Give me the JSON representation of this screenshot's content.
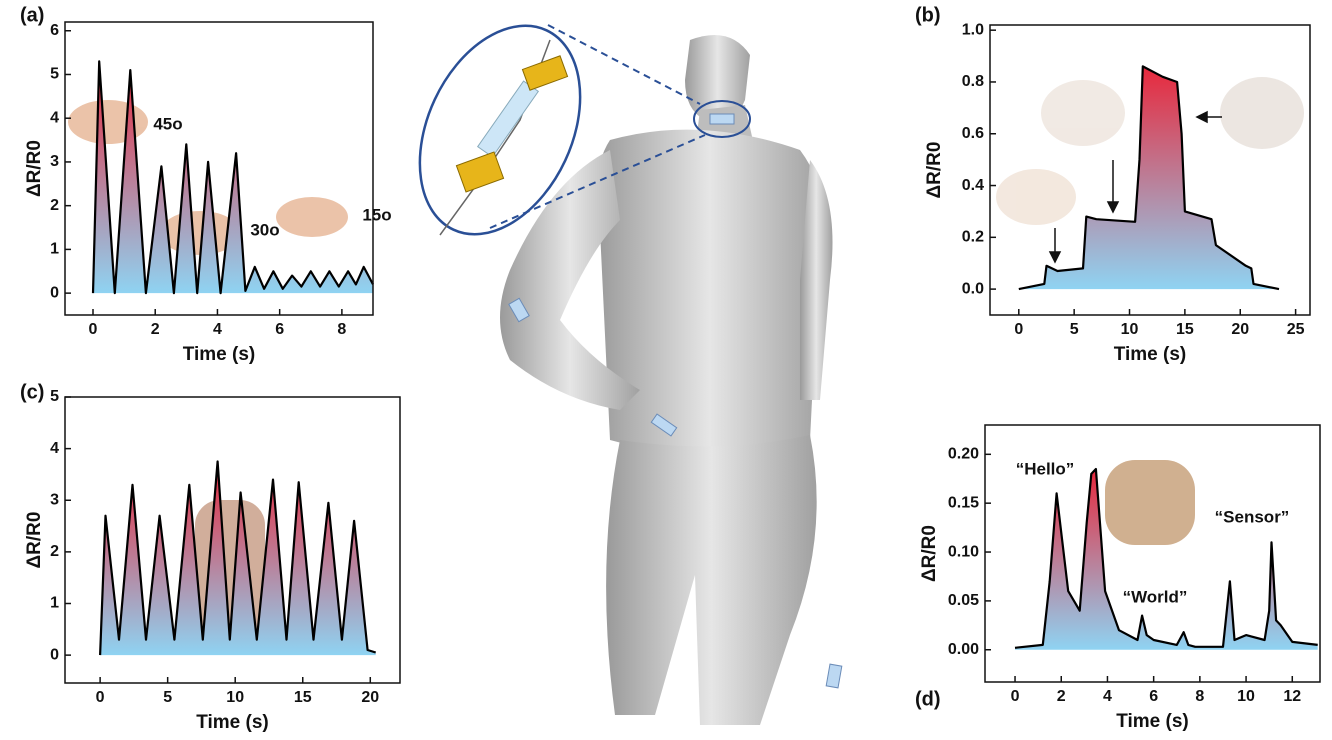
{
  "chart_data": [
    {
      "type": "area",
      "label": "(a)",
      "x_label": "Time (s)",
      "y_label": "ΔR/R0",
      "color": "#000000",
      "area_gradient": [
        "#e8283c",
        "#8fd3f2"
      ],
      "x": [
        0,
        0.2,
        0.7,
        1.2,
        1.7,
        2.2,
        2.6,
        3.0,
        3.35,
        3.7,
        4.1,
        4.6,
        4.9,
        5.2,
        5.5,
        5.8,
        6.1,
        6.4,
        6.7,
        7.0,
        7.3,
        7.6,
        7.9,
        8.2,
        8.45,
        8.7,
        9.0
      ],
      "values": [
        0,
        5.3,
        0,
        5.1,
        0,
        2.9,
        0,
        3.4,
        0,
        3.0,
        0,
        3.2,
        0.05,
        0.6,
        0.1,
        0.5,
        0.1,
        0.4,
        0.15,
        0.5,
        0.15,
        0.5,
        0.15,
        0.5,
        0.2,
        0.6,
        0.2
      ],
      "xlim": [
        -0.9,
        9.0
      ],
      "ylim": [
        -0.5,
        6.2
      ],
      "xticks": [
        0,
        2,
        4,
        6,
        8
      ],
      "yticks": [
        0,
        1,
        2,
        3,
        4,
        5,
        6
      ],
      "annotations": [
        "45o",
        "30o",
        "15o"
      ]
    },
    {
      "type": "area",
      "label": "(b)",
      "x_label": "Time (s)",
      "y_label": "ΔR/R0",
      "color": "#000000",
      "area_gradient": [
        "#e8283c",
        "#8fd3f2"
      ],
      "x": [
        0,
        2.3,
        2.5,
        3.5,
        5.8,
        6.1,
        7,
        10.5,
        10.9,
        11.2,
        13,
        14.3,
        14.7,
        15,
        17.4,
        17.8,
        20.5,
        21,
        21.2,
        23.5
      ],
      "values": [
        0,
        0.02,
        0.09,
        0.07,
        0.08,
        0.28,
        0.27,
        0.26,
        0.5,
        0.86,
        0.82,
        0.8,
        0.6,
        0.3,
        0.27,
        0.17,
        0.09,
        0.08,
        0.02,
        0
      ],
      "xlim": [
        -2.6,
        26.3
      ],
      "ylim": [
        -0.1,
        1.02
      ],
      "xticks": [
        0,
        5,
        10,
        15,
        20,
        25
      ],
      "yticks": [
        {
          "value": 0,
          "label": "0.0"
        },
        0.2,
        0.4,
        0.6,
        0.8,
        {
          "value": 1,
          "label": "1.0"
        }
      ]
    },
    {
      "type": "area",
      "label": "(c)",
      "x_label": "Time (s)",
      "y_label": "ΔR/R0",
      "color": "#000000",
      "area_gradient": [
        "#e8283c",
        "#8fd3f2"
      ],
      "x": [
        0,
        0.4,
        1.4,
        2.4,
        3.4,
        4.4,
        5.5,
        6.6,
        7.6,
        8.7,
        9.6,
        10.4,
        11.6,
        12.8,
        13.8,
        14.7,
        15.8,
        16.9,
        17.9,
        18.8,
        19.8,
        20.4
      ],
      "values": [
        0,
        2.7,
        0.3,
        3.3,
        0.3,
        2.7,
        0.3,
        3.3,
        0.3,
        3.75,
        0.3,
        3.15,
        0.3,
        3.4,
        0.3,
        3.35,
        0.3,
        2.95,
        0.3,
        2.6,
        0.1,
        0.05
      ],
      "xlim": [
        -2.6,
        22.2
      ],
      "ylim": [
        -0.54,
        5
      ],
      "xticks": [
        0,
        5,
        10,
        15,
        20
      ],
      "yticks": [
        0,
        1,
        2,
        3,
        4,
        5
      ]
    },
    {
      "type": "area",
      "label": "(d)",
      "x_label": "Time (s)",
      "y_label": "ΔR/R0",
      "color": "#000000",
      "area_gradient": [
        "#e8283c",
        "#8fd3f2"
      ],
      "x": [
        0,
        1.2,
        1.5,
        1.8,
        2.3,
        2.8,
        3.1,
        3.3,
        3.5,
        3.9,
        4.5,
        5.3,
        5.5,
        5.7,
        6,
        7,
        7.3,
        7.5,
        7.8,
        9.0,
        9.3,
        9.5,
        10,
        10.8,
        11.0,
        11.1,
        11.3,
        11.5,
        12,
        13.1
      ],
      "values": [
        0.002,
        0.005,
        0.07,
        0.16,
        0.06,
        0.04,
        0.13,
        0.18,
        0.185,
        0.06,
        0.02,
        0.01,
        0.035,
        0.015,
        0.01,
        0.005,
        0.018,
        0.005,
        0.003,
        0.003,
        0.07,
        0.01,
        0.015,
        0.01,
        0.04,
        0.11,
        0.03,
        0.025,
        0.008,
        0.005
      ],
      "xlim": [
        -1.3,
        13.2
      ],
      "ylim": [
        -0.033,
        0.23
      ],
      "xticks": [
        0,
        2,
        4,
        6,
        8,
        10,
        12
      ],
      "yticks": [
        {
          "value": 0,
          "label": "0.00"
        },
        0.05,
        {
          "value": 0.1,
          "label": "0.10"
        },
        0.15,
        {
          "value": 0.2,
          "label": "0.20"
        }
      ],
      "annotations": [
        "“Hello”",
        "“World”",
        "“Sensor”"
      ]
    }
  ]
}
